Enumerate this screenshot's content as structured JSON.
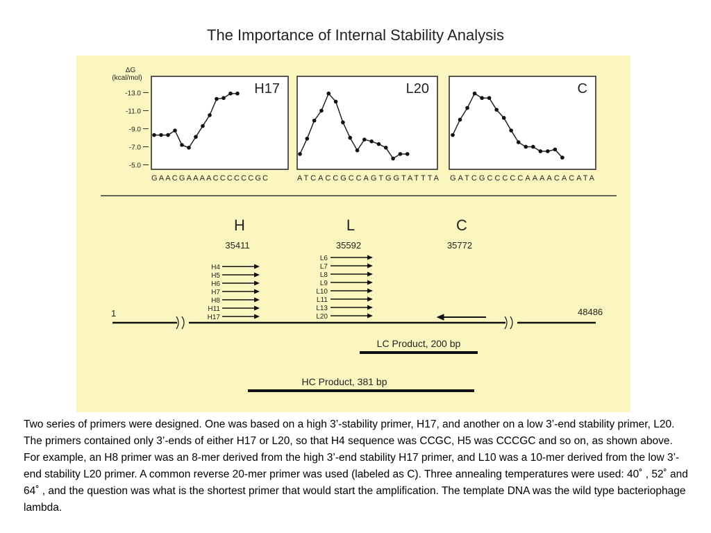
{
  "title": "The Importance of Internal Stability Analysis",
  "chart_data": [
    {
      "type": "line",
      "title": "H17",
      "y_label": [
        "ΔG",
        "(kcal/mol)"
      ],
      "sequence": "GAACGAAAACCCCCCGC",
      "ylim": [
        -14.8,
        -4.5
      ],
      "y_inverted": true,
      "yticks": [
        {
          "value": -13,
          "label": "-13.0"
        },
        {
          "value": -11,
          "label": "-11.0"
        },
        {
          "value": -9,
          "label": "-9.0"
        },
        {
          "value": -7,
          "label": "-7.0"
        },
        {
          "value": -5,
          "label": "-5.0"
        }
      ],
      "values": [
        -8.3,
        -8.3,
        -8.3,
        -8.8,
        -7.2,
        -6.9,
        -8.1,
        -9.3,
        -10.5,
        -12.3,
        -12.4,
        -12.9,
        -12.9
      ]
    },
    {
      "type": "line",
      "title": "L20",
      "sequence": "ATCACCGCCAGTGGTATTTA",
      "ylim": [
        -14.8,
        -4.5
      ],
      "y_inverted": true,
      "values": [
        -6.2,
        -7.9,
        -9.9,
        -11.0,
        -12.9,
        -12.0,
        -9.7,
        -8.0,
        -6.6,
        -7.8,
        -7.6,
        -7.3,
        -6.9,
        -5.7,
        -6.2,
        -6.2
      ]
    },
    {
      "type": "line",
      "title": "C",
      "sequence": "GATCGCCCCCAAAACACATA",
      "ylim": [
        -14.8,
        -4.5
      ],
      "y_inverted": true,
      "values": [
        -8.3,
        -10.0,
        -11.3,
        -12.9,
        -12.4,
        -12.4,
        -11.1,
        -10.2,
        -8.8,
        -7.5,
        -7.0,
        -7.0,
        -6.5,
        -6.5,
        -6.7,
        -5.8
      ]
    }
  ],
  "diagram": {
    "sites": [
      {
        "label": "H",
        "position": "35411"
      },
      {
        "label": "L",
        "position": "35592"
      },
      {
        "label": "C",
        "position": "35772"
      }
    ],
    "h_primers": [
      "H4",
      "H5",
      "H6",
      "H7",
      "H8",
      "H11",
      "H17"
    ],
    "l_primers": [
      "L6",
      "L7",
      "L8",
      "L9",
      "L10",
      "L11",
      "L13",
      "L20"
    ],
    "start": "1",
    "end": "48486",
    "lc_product": "LC Product, 200 bp",
    "hc_product": "HC Product, 381 bp"
  },
  "caption": "Two series of primers were designed. One was based on a high 3’-stability primer, H17, and another on a low 3’-end stability primer, L20. The primers contained only 3’-ends of either H17 or L20, so that H4 sequence was CCGC, H5 was CCCGC and so on, as shown above. For example, an H8 primer was an 8-mer derived from the high 3’-end stability H17 primer, and L10 was a 10-mer derived from the low 3’-end stability L20 primer.  A common reverse 20-mer primer was used (labeled as C). Three annealing temperatures were used: 40˚ , 52˚  and 64˚ , and the question was what is the shortest primer that would start the amplification. The template DNA was the wild type bacteriophage lambda."
}
